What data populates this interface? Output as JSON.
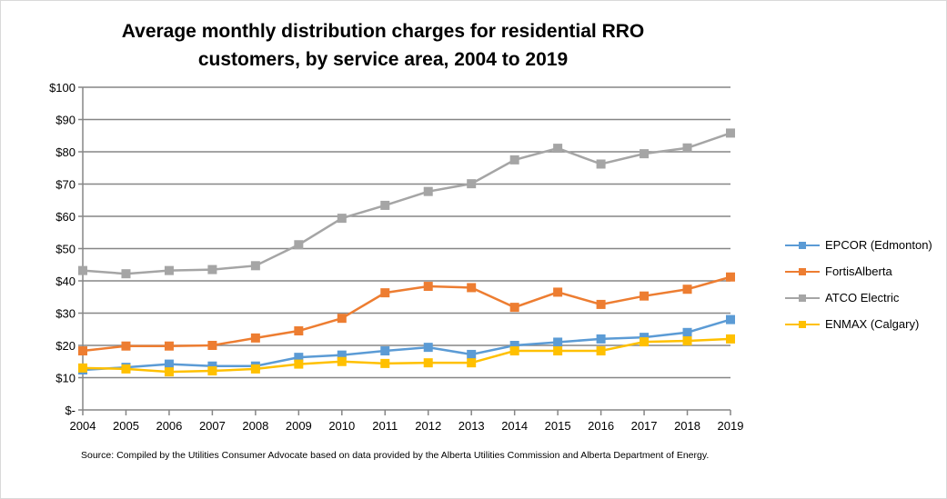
{
  "chart_data": {
    "type": "line",
    "title": "Average monthly distribution charges for residential RRO customers, by service area, 2004 to 2019",
    "xlabel": "",
    "ylabel": "",
    "x": [
      "2004",
      "2005",
      "2006",
      "2007",
      "2008",
      "2009",
      "2010",
      "2011",
      "2012",
      "2013",
      "2014",
      "2015",
      "2016",
      "2017",
      "2018",
      "2019"
    ],
    "ylim": [
      0,
      100
    ],
    "yticks": [
      "$-",
      "$10",
      "$20",
      "$30",
      "$40",
      "$50",
      "$60",
      "$70",
      "$80",
      "$90",
      "$100"
    ],
    "grid": true,
    "legend": "right",
    "series": [
      {
        "name": "EPCOR (Edmonton)",
        "color": "#5b9bd5",
        "values": [
          12.4,
          13.2,
          14.2,
          13.6,
          13.6,
          16.3,
          17.0,
          18.3,
          19.4,
          17.2,
          20.0,
          21.0,
          22.0,
          22.5,
          24.0,
          28.0
        ]
      },
      {
        "name": "FortisAlberta",
        "color": "#ed7d31",
        "values": [
          18.3,
          19.8,
          19.8,
          20.0,
          22.3,
          24.5,
          28.4,
          36.3,
          38.3,
          37.9,
          31.8,
          36.5,
          32.7,
          35.3,
          37.4,
          41.2
        ]
      },
      {
        "name": "ATCO Electric",
        "color": "#a5a5a5",
        "values": [
          43.2,
          42.2,
          43.2,
          43.5,
          44.7,
          51.2,
          59.4,
          63.4,
          67.7,
          70.1,
          77.5,
          81.1,
          76.2,
          79.4,
          81.2,
          85.8
        ]
      },
      {
        "name": "ENMAX (Calgary)",
        "color": "#ffc000",
        "values": [
          13.0,
          12.7,
          11.8,
          12.1,
          12.7,
          14.2,
          15.0,
          14.4,
          14.6,
          14.6,
          18.3,
          18.3,
          18.3,
          21.1,
          21.4,
          22.0
        ]
      }
    ],
    "source": "Source: Compiled by the Utilities Consumer Advocate based on data provided by the Alberta Utilities Commission and Alberta Department of Energy."
  }
}
